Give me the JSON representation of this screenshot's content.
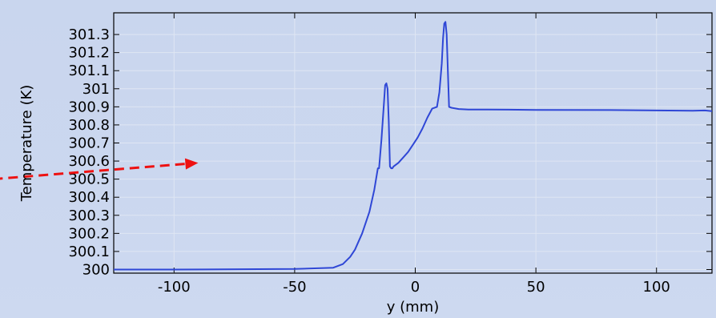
{
  "chart_data": {
    "type": "line",
    "title": "",
    "xlabel": "y (mm)",
    "ylabel": "Temperature (K)",
    "xlim": [
      -125,
      123
    ],
    "ylim": [
      299.98,
      301.42
    ],
    "x_ticks": [
      -100,
      -50,
      0,
      50,
      100
    ],
    "x_tick_labels": [
      "-100",
      "-50",
      "0",
      "50",
      "100"
    ],
    "y_ticks": [
      300,
      300.1,
      300.2,
      300.3,
      300.4,
      300.5,
      300.6,
      300.7,
      300.8,
      300.9,
      301,
      301.1,
      301.2,
      301.3
    ],
    "y_tick_labels": [
      "300",
      "300.1",
      "300.2",
      "300.3",
      "300.4",
      "300.5",
      "300.6",
      "300.7",
      "300.8",
      "300.9",
      "301",
      "301.1",
      "301.2",
      "301.3"
    ],
    "grid": true,
    "series": [
      {
        "color": "#2f47d6",
        "x": [
          -125,
          -100,
          -50,
          -34,
          -30,
          -27,
          -25,
          -22,
          -19,
          -17,
          -16,
          -15.5,
          -15,
          -14,
          -13,
          -12.5,
          -12,
          -11.5,
          -11,
          -10.5,
          -10,
          -9.5,
          -9,
          -7,
          -5,
          -3,
          -1,
          1,
          3,
          5,
          7,
          9,
          10,
          11,
          11.5,
          12,
          12.5,
          13,
          13.5,
          14,
          15,
          18,
          22,
          30,
          50,
          80,
          100,
          115,
          120,
          123
        ],
        "y": [
          300.0,
          300.0,
          300.003,
          300.01,
          300.03,
          300.07,
          300.11,
          300.2,
          300.32,
          300.44,
          300.52,
          300.56,
          300.56,
          300.72,
          300.92,
          301.02,
          301.03,
          301.0,
          300.82,
          300.57,
          300.56,
          300.56,
          300.57,
          300.59,
          300.62,
          300.65,
          300.69,
          300.73,
          300.78,
          300.84,
          300.89,
          300.9,
          300.98,
          301.14,
          301.28,
          301.36,
          301.37,
          301.3,
          301.1,
          300.9,
          300.895,
          300.888,
          300.885,
          300.885,
          300.883,
          300.882,
          300.88,
          300.878,
          300.88,
          300.876
        ]
      }
    ],
    "annotation": {
      "type": "arrow",
      "color": "#ee1111",
      "style": "dashed",
      "x_from": -175,
      "y_from": 300.5,
      "x_to": -90,
      "y_to": 300.59
    }
  }
}
